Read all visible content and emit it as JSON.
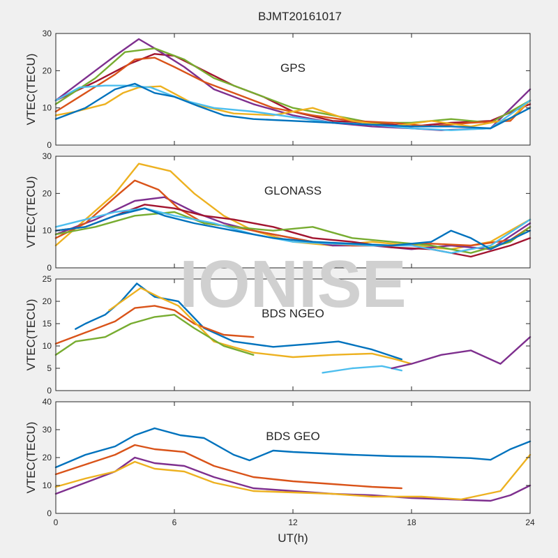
{
  "figure": {
    "title": "BJMT20161017",
    "watermark": "IONISE",
    "xlabel": "UT(h)",
    "xticks": [
      "0",
      "6",
      "12",
      "18",
      "24"
    ]
  },
  "colors": [
    "#0072BD",
    "#D95319",
    "#EDB120",
    "#7E2F8E",
    "#77AC30",
    "#4DBEEE",
    "#A2142F"
  ],
  "chart_data": [
    {
      "type": "line",
      "title": "GPS",
      "ylabel": "VTEC(TECU)",
      "xlim": [
        0,
        24
      ],
      "ylim": [
        0,
        30
      ],
      "yticks": [
        0,
        10,
        20,
        30
      ],
      "series": [
        {
          "color": "#A2142F",
          "x": [
            0,
            2,
            3.8,
            5,
            6,
            7.5,
            9,
            10.5,
            12,
            14,
            16,
            18,
            20,
            22,
            24
          ],
          "y": [
            12,
            17,
            22,
            24.5,
            24,
            20,
            16,
            13,
            9,
            6.5,
            6,
            5,
            6,
            6.5,
            11
          ]
        },
        {
          "color": "#7E2F8E",
          "x": [
            0,
            2,
            3,
            4.2,
            5,
            6.5,
            8,
            10,
            12,
            14,
            16,
            18,
            19.5,
            22,
            24
          ],
          "y": [
            12,
            20,
            24,
            28.5,
            26,
            21,
            15,
            11,
            8,
            6,
            5,
            4.5,
            4,
            4.5,
            15
          ]
        },
        {
          "color": "#77AC30",
          "x": [
            0,
            2,
            3.5,
            5,
            6.5,
            8,
            10,
            12,
            14,
            16,
            18,
            20,
            22,
            24
          ],
          "y": [
            11,
            18,
            25,
            26,
            23,
            18,
            14,
            10,
            8,
            6,
            6,
            7,
            6,
            12
          ]
        },
        {
          "color": "#D95319",
          "x": [
            0,
            1.5,
            3,
            4,
            5,
            6,
            7.5,
            9,
            11,
            13,
            15,
            17,
            19,
            21,
            23,
            24
          ],
          "y": [
            9,
            14,
            19,
            23,
            23.5,
            21,
            17,
            14,
            10,
            8,
            6.5,
            6,
            5,
            6,
            6.5,
            12
          ]
        },
        {
          "color": "#EDB120",
          "x": [
            0,
            1,
            2.5,
            3.4,
            4.2,
            5.3,
            7,
            9,
            11,
            13,
            15,
            17,
            19,
            21,
            23,
            24
          ],
          "y": [
            8,
            9,
            11,
            14,
            15.5,
            15.8,
            11,
            8.5,
            8,
            10,
            6.5,
            5,
            6.5,
            5,
            7,
            12
          ]
        },
        {
          "color": "#4DBEEE",
          "x": [
            0,
            1.2,
            2.5,
            3.5,
            4.8,
            6.5,
            8,
            10,
            12,
            14,
            16,
            18,
            20,
            22,
            24
          ],
          "y": [
            12,
            15.5,
            16,
            16,
            15.5,
            12,
            10,
            9,
            7.5,
            6,
            5.5,
            4.5,
            4,
            4.5,
            12
          ]
        },
        {
          "color": "#0072BD",
          "x": [
            0,
            1.5,
            3,
            4,
            5,
            6,
            7.2,
            8.5,
            10,
            12,
            14,
            16,
            18,
            20,
            22,
            24
          ],
          "y": [
            7,
            10,
            15,
            16.5,
            14,
            13,
            10.5,
            8,
            7,
            6.5,
            6,
            5.5,
            5,
            5,
            4.5,
            10
          ]
        }
      ]
    },
    {
      "type": "line",
      "title": "GLONASS",
      "ylabel": "VTEC(TECU)",
      "xlim": [
        0,
        24
      ],
      "ylim": [
        0,
        30
      ],
      "yticks": [
        0,
        10,
        20,
        30
      ],
      "series": [
        {
          "color": "#EDB120",
          "x": [
            0,
            1.5,
            3,
            4.2,
            5.8,
            7,
            8.5,
            10,
            12,
            14,
            16,
            18,
            20,
            22,
            24
          ],
          "y": [
            6,
            13,
            20,
            28,
            26,
            20,
            14,
            10,
            7,
            6,
            7,
            6,
            5,
            7,
            13
          ]
        },
        {
          "color": "#7E2F8E",
          "x": [
            0,
            2,
            4,
            5.5,
            7,
            8.5,
            10,
            12,
            14,
            16,
            18,
            20,
            22,
            24
          ],
          "y": [
            9,
            13,
            18,
            19,
            15,
            12,
            10,
            8,
            6,
            6,
            5,
            6,
            5,
            12
          ]
        },
        {
          "color": "#D95319",
          "x": [
            0,
            1.5,
            3,
            4,
            5.2,
            6.2,
            7.5,
            9,
            11,
            13,
            15,
            17,
            19,
            21,
            23,
            24
          ],
          "y": [
            8,
            12,
            19,
            23.5,
            21,
            16,
            12,
            11,
            9,
            7,
            6,
            6,
            6.5,
            6,
            7.5,
            11
          ]
        },
        {
          "color": "#A2142F",
          "x": [
            0,
            1.5,
            3,
            4.5,
            6,
            7.5,
            9,
            11,
            13,
            15,
            17,
            19,
            21,
            23,
            24
          ],
          "y": [
            10,
            11,
            14,
            17,
            16,
            14,
            13,
            11,
            8,
            7,
            5.5,
            5,
            3,
            6,
            8
          ]
        },
        {
          "color": "#77AC30",
          "x": [
            0,
            2,
            4,
            6,
            7.5,
            9,
            11,
            13,
            15,
            17,
            19,
            21,
            23,
            24
          ],
          "y": [
            9,
            11,
            14,
            15,
            12,
            11,
            10,
            11,
            8,
            7,
            6,
            4,
            7,
            11
          ]
        },
        {
          "color": "#4DBEEE",
          "x": [
            0,
            1.5,
            3,
            4.5,
            6,
            8,
            10,
            12,
            14,
            16,
            18,
            20,
            22,
            24
          ],
          "y": [
            11,
            13,
            15,
            16,
            14,
            12,
            9,
            7,
            6.5,
            6,
            6,
            4,
            6,
            13
          ]
        },
        {
          "color": "#0072BD",
          "x": [
            0,
            1.5,
            3,
            4.5,
            5.5,
            7,
            9,
            11,
            13,
            15,
            17,
            19,
            20,
            21,
            22,
            24
          ],
          "y": [
            10,
            11,
            14,
            16,
            14,
            12,
            10,
            8,
            7,
            6.5,
            6,
            7,
            10,
            8,
            5,
            10
          ]
        }
      ]
    },
    {
      "type": "line",
      "title": "BDS NGEO",
      "ylabel": "VTEC(TECU)",
      "xlim": [
        0,
        24
      ],
      "ylim": [
        0,
        25
      ],
      "yticks": [
        0,
        5,
        10,
        15,
        20,
        25
      ],
      "series": [
        {
          "color": "#0072BD",
          "x": [
            1,
            1.5,
            2.5,
            3.3,
            4.1,
            5,
            6.2,
            7.5,
            9,
            11,
            13,
            14.3,
            16,
            17.5
          ],
          "y": [
            13.8,
            15,
            17,
            20,
            24,
            21,
            20,
            14,
            11,
            9.8,
            10.5,
            11,
            9.2,
            7
          ]
        },
        {
          "color": "#D95319",
          "x": [
            0,
            1.5,
            3,
            4,
            5,
            6,
            7,
            8.5,
            10
          ],
          "y": [
            10.5,
            13,
            15.5,
            18.5,
            19,
            18,
            15,
            12.5,
            12
          ]
        },
        {
          "color": "#EDB120",
          "x": [
            2.7,
            3.5,
            4.3,
            5.2,
            6.2,
            8,
            10,
            12,
            14,
            16,
            17.2,
            18
          ],
          "y": [
            18,
            20.5,
            23,
            21,
            19,
            11,
            8.5,
            7.5,
            8,
            8.3,
            7,
            6
          ]
        },
        {
          "color": "#77AC30",
          "x": [
            0,
            1,
            2.5,
            3.8,
            5,
            6,
            7,
            8.5,
            10
          ],
          "y": [
            8,
            11,
            12,
            15,
            16.5,
            17,
            14,
            10,
            8
          ]
        },
        {
          "color": "#4DBEEE",
          "x": [
            13.5,
            15,
            16.5,
            17.5
          ],
          "y": [
            4,
            5,
            5.5,
            4.5
          ]
        },
        {
          "color": "#7E2F8E",
          "x": [
            17,
            18,
            19.5,
            21,
            22.5,
            24
          ],
          "y": [
            5,
            6,
            8,
            9,
            6,
            12
          ]
        }
      ]
    },
    {
      "type": "line",
      "title": "BDS GEO",
      "ylabel": "VTEC(TECU)",
      "xlim": [
        0,
        24
      ],
      "ylim": [
        0,
        40
      ],
      "yticks": [
        0,
        10,
        20,
        30,
        40
      ],
      "series": [
        {
          "color": "#0072BD",
          "x": [
            0,
            1.5,
            3,
            4,
            5,
            6.3,
            7.5,
            9,
            9.8,
            11,
            12,
            13.5,
            15,
            17,
            19,
            21,
            22,
            23,
            24
          ],
          "y": [
            16.5,
            21,
            24,
            28,
            30.5,
            28,
            27,
            21,
            19,
            22.5,
            22,
            21.5,
            21,
            20.5,
            20.3,
            19.8,
            19.2,
            23,
            25.8
          ]
        },
        {
          "color": "#D95319",
          "x": [
            0,
            1.5,
            3,
            4,
            5,
            6.5,
            8,
            10,
            12,
            14,
            16,
            17.5
          ],
          "y": [
            14,
            17.5,
            21,
            24.5,
            23,
            22,
            17,
            13,
            11.5,
            10.5,
            9.5,
            9
          ]
        },
        {
          "color": "#7E2F8E",
          "x": [
            0,
            1.5,
            3,
            4,
            5,
            6.5,
            8,
            10,
            12,
            14,
            16,
            18,
            20,
            22,
            23,
            24
          ],
          "y": [
            7,
            11,
            15,
            20,
            18,
            17,
            13,
            9,
            8,
            7,
            6.5,
            5.5,
            5,
            4.5,
            6.5,
            10
          ]
        },
        {
          "color": "#EDB120",
          "x": [
            0,
            1.5,
            3,
            4,
            5,
            6.5,
            8,
            10,
            12,
            14,
            16,
            18.5,
            20.5,
            22.5,
            24
          ],
          "y": [
            9.5,
            12.5,
            15,
            18.5,
            16,
            15,
            11,
            8,
            7.5,
            7,
            6,
            6,
            5,
            8,
            21
          ]
        }
      ]
    }
  ]
}
